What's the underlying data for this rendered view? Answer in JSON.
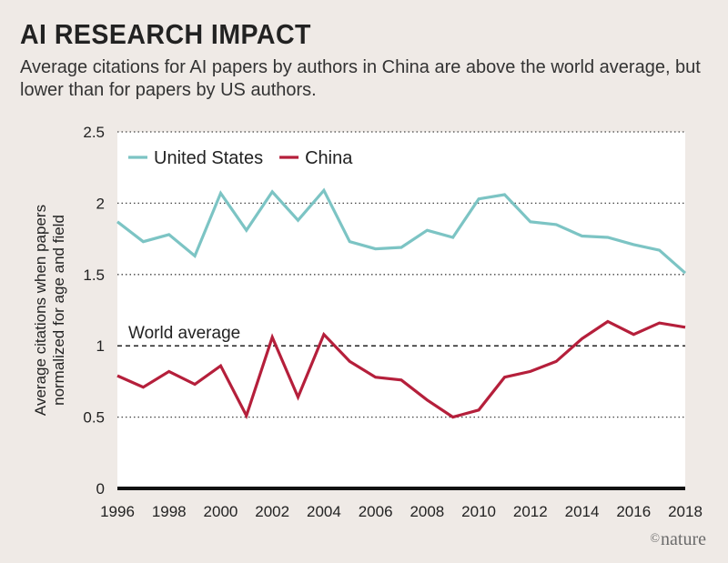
{
  "header": {
    "title": "AI RESEARCH IMPACT",
    "subtitle": "Average citations for AI papers by authors in China are above the world average, but lower than for papers by US authors."
  },
  "credit": {
    "symbol": "©",
    "text": "nature"
  },
  "colors": {
    "us": "#7cc4c4",
    "china": "#b51f3b",
    "plot_bg": "#ffffff",
    "page_bg": "#efeae6"
  },
  "chart_data": {
    "type": "line",
    "title": "AI RESEARCH IMPACT",
    "xlabel": "",
    "ylabel": "Average citations when papers normalized for age and field",
    "xlim": [
      1996,
      2018
    ],
    "ylim": [
      0,
      2.5
    ],
    "x_ticks": [
      1996,
      1998,
      2000,
      2002,
      2004,
      2006,
      2008,
      2010,
      2012,
      2014,
      2016,
      2018
    ],
    "y_ticks": [
      {
        "value": 0,
        "label": "0"
      },
      {
        "value": 0.5,
        "label": "0.5"
      },
      {
        "value": 1,
        "label": "1"
      },
      {
        "value": 1.5,
        "label": "1.5"
      },
      {
        "value": 2,
        "label": "2"
      },
      {
        "value": 2.5,
        "label": "2.5"
      }
    ],
    "x": [
      1996,
      1997,
      1998,
      1999,
      2000,
      2001,
      2002,
      2003,
      2004,
      2005,
      2006,
      2007,
      2008,
      2009,
      2010,
      2011,
      2012,
      2013,
      2014,
      2015,
      2016,
      2017,
      2018
    ],
    "series": [
      {
        "name": "United States",
        "color": "#7cc4c4",
        "values": [
          1.87,
          1.73,
          1.78,
          1.63,
          2.07,
          1.81,
          2.08,
          1.88,
          2.09,
          1.73,
          1.68,
          1.69,
          1.81,
          1.76,
          2.03,
          2.06,
          1.87,
          1.85,
          1.77,
          1.76,
          1.71,
          1.67,
          1.51
        ]
      },
      {
        "name": "China",
        "color": "#b51f3b",
        "values": [
          0.79,
          0.71,
          0.82,
          0.73,
          0.86,
          0.51,
          1.06,
          0.64,
          1.08,
          0.89,
          0.78,
          0.76,
          0.62,
          0.5,
          0.55,
          0.78,
          0.82,
          0.89,
          1.05,
          1.17,
          1.08,
          1.16,
          1.13
        ]
      }
    ],
    "reference_line": {
      "value": 1,
      "label": "World average"
    },
    "legend": "top-left",
    "grid": "horizontal dotted"
  }
}
